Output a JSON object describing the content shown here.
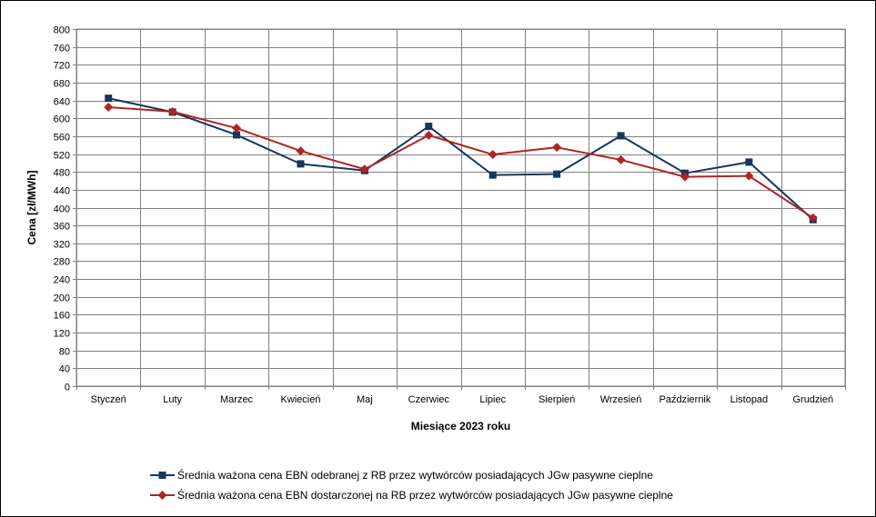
{
  "chart_data": {
    "type": "line",
    "categories": [
      "Styczeń",
      "Luty",
      "Marzec",
      "Kwiecień",
      "Maj",
      "Czerwiec",
      "Lipiec",
      "Sierpień",
      "Wrzesień",
      "Październik",
      "Listopad",
      "Grudzień"
    ],
    "series": [
      {
        "name": "Średnia ważona cena EBN odebranej z RB przez wytwórców posiadających JGw pasywne cieplne",
        "color": "#17365d",
        "marker": "square",
        "values": [
          645,
          614,
          563,
          498,
          483,
          582,
          473,
          475,
          561,
          477,
          502,
          373
        ]
      },
      {
        "name": "Średnia ważona cena EBN dostarczonej na RB przez wytwórców posiadających JGw pasywne cieplne",
        "color": "#b22222",
        "marker": "diamond",
        "values": [
          625,
          615,
          578,
          527,
          486,
          562,
          519,
          535,
          507,
          469,
          471,
          377
        ]
      }
    ],
    "xlabel": "Miesiące 2023  roku",
    "ylabel": "Cena [zł/MWh]",
    "ylim": [
      0,
      800
    ],
    "ytick_step": 40,
    "grid": true,
    "legend_position": "bottom"
  }
}
